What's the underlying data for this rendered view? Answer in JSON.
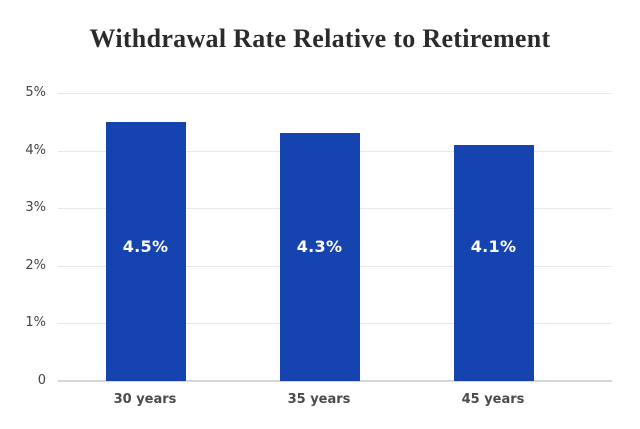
{
  "chart_data": {
    "type": "bar",
    "title": "Withdrawal Rate Relative to Retirement",
    "categories": [
      "30 years",
      "35 years",
      "45 years"
    ],
    "values": [
      4.5,
      4.3,
      4.1
    ],
    "value_labels": [
      "4.5%",
      "4.3%",
      "4.1%"
    ],
    "xlabel": "",
    "ylabel": "",
    "ylim": [
      0,
      5
    ],
    "y_ticks": [
      {
        "value": 5,
        "label": "5%"
      },
      {
        "value": 4,
        "label": "4%"
      },
      {
        "value": 3,
        "label": "3%"
      },
      {
        "value": 2,
        "label": "2%"
      },
      {
        "value": 1,
        "label": "1%"
      },
      {
        "value": 0,
        "label": "0"
      }
    ],
    "grid": "horizontal",
    "legend_position": "none",
    "colors": {
      "bar": "#1544b0",
      "value_label": "#ffffff",
      "title": "#2b2b2b",
      "y_tick_label": "#454545",
      "category_label": "#4b4b4b",
      "gridline": "#e8e8e8",
      "axis_line": "#d6d6d6",
      "background": "#ffffff"
    }
  }
}
